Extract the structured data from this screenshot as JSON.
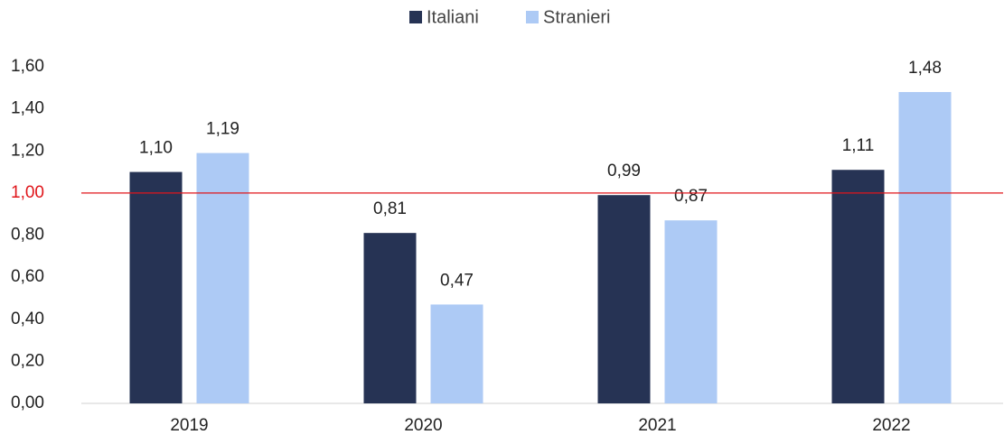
{
  "chart_data": {
    "type": "bar",
    "categories": [
      "2019",
      "2020",
      "2021",
      "2022"
    ],
    "series": [
      {
        "name": "Italiani",
        "color": "#263354",
        "values": [
          1.1,
          0.81,
          0.99,
          1.11
        ],
        "value_labels": [
          "1,10",
          "0,81",
          "0,99",
          "1,11"
        ]
      },
      {
        "name": "Stranieri",
        "color": "#adcaf5",
        "values": [
          1.19,
          0.47,
          0.87,
          1.48
        ],
        "value_labels": [
          "1,19",
          "0,47",
          "0,87",
          "1,48"
        ]
      }
    ],
    "ylim": [
      0,
      1.6
    ],
    "yticks": [
      {
        "value": 0,
        "label": "0,00"
      },
      {
        "value": 0.2,
        "label": "0,20"
      },
      {
        "value": 0.4,
        "label": "0,40"
      },
      {
        "value": 0.6,
        "label": "0,60"
      },
      {
        "value": 0.8,
        "label": "0,80"
      },
      {
        "value": 1,
        "label": "1,00"
      },
      {
        "value": 1.2,
        "label": "1,20"
      },
      {
        "value": 1.4,
        "label": "1,40"
      },
      {
        "value": 1.6,
        "label": "1,60"
      }
    ],
    "reference_line": {
      "value": 1,
      "color": "#e0161b"
    },
    "grid": false,
    "legend": "top"
  }
}
